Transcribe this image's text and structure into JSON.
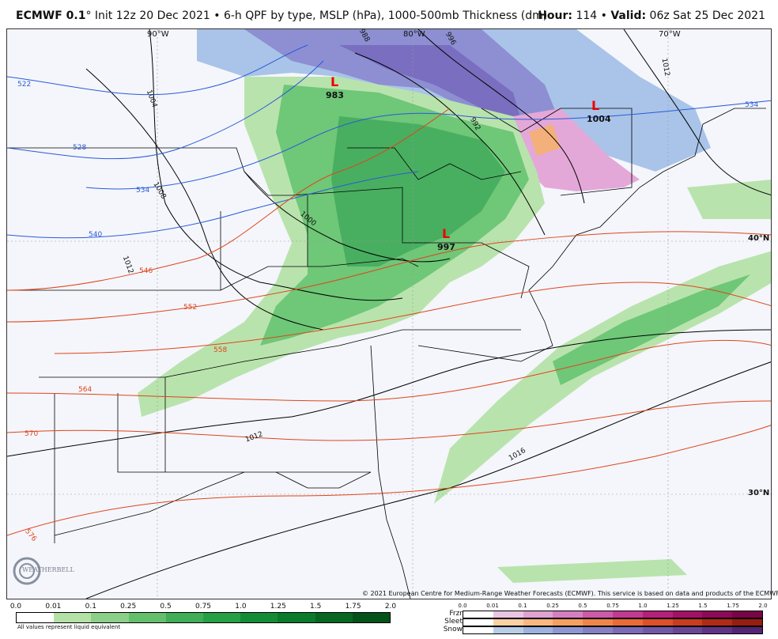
{
  "header": {
    "model": "ECMWF 0.1",
    "degree": "°",
    "subtitle": " Init 12z 20 Dec 2021 • 6-h QPF by type, MSLP (hPa), 1000-500mb Thickness (dm)",
    "hour_label": "Hour:",
    "hour_value": "114",
    "valid_label": "Valid:",
    "valid_value": "06z Sat 25 Dec 2021"
  },
  "map": {
    "longitude_labels": [
      "90°W",
      "80°W",
      "70°W"
    ],
    "latitude_labels": [
      "40°N",
      "30°N"
    ],
    "pressure_centers": [
      {
        "symbol": "L",
        "value": "983"
      },
      {
        "symbol": "L",
        "value": "1004"
      },
      {
        "symbol": "L",
        "value": "997"
      }
    ],
    "isobar_labels": [
      "988",
      "996",
      "1004",
      "992",
      "1008",
      "1000",
      "1012",
      "1012",
      "1016",
      "1012"
    ],
    "thickness_labels": [
      "522",
      "528",
      "534",
      "540",
      "546",
      "552",
      "558",
      "564",
      "570",
      "576",
      "534"
    ],
    "colors": {
      "land_bg": "#f4f6fb",
      "rain_light": "#b9e3ad",
      "rain_mid": "#6fc778",
      "rain_heavy": "#3ea95a",
      "snow_light": "#a9c4e8",
      "snow_mid": "#8d8fd2",
      "snow_heavy": "#7a6ec0",
      "frzr": "#e3a8d8",
      "sleet": "#f4b07a",
      "isobar": "#000000",
      "thickness": "#e0441b",
      "thickness_cold": "#2a5ad8"
    }
  },
  "copyright": "© 2021 European Centre for Medium-Range Weather Forecasts (ECMWF). This service is based on data and products of the ECMWF.",
  "legend_main": {
    "ticks": [
      "0.0",
      "0.01",
      "0.1",
      "0.25",
      "0.5",
      "0.75",
      "1.0",
      "1.25",
      "1.5",
      "1.75",
      "2.0"
    ],
    "colors": [
      "#ffffff",
      "#b4e2a6",
      "#8bd088",
      "#64bf6c",
      "#3fae57",
      "#26a044",
      "#148c36",
      "#0b7a2b",
      "#066622",
      "#03521a",
      "#003d12"
    ],
    "note": "All values represent liquid equivalent"
  },
  "legend_ptype": {
    "ticks": [
      "0.0",
      "0.01",
      "0.1",
      "0.25",
      "0.5",
      "0.75",
      "1.0",
      "1.25",
      "1.5",
      "1.75",
      "2.0"
    ],
    "rows": [
      {
        "label": "Frzr",
        "colors": [
          "#ffffff",
          "#e9c5e2",
          "#dfa3d2",
          "#d57fc0",
          "#cc5aa9",
          "#c23a92",
          "#b5207b",
          "#a11267",
          "#8c0a56",
          "#780546"
        ]
      },
      {
        "label": "Sleet",
        "colors": [
          "#ffffff",
          "#fbd0a5",
          "#f8b880",
          "#f4a062",
          "#f0854b",
          "#eb6a39",
          "#de502b",
          "#c83c20",
          "#b02b17",
          "#961e10"
        ]
      },
      {
        "label": "Snow",
        "colors": [
          "#ffffff",
          "#b9cde8",
          "#9cb2df",
          "#8e97d3",
          "#8780c5",
          "#7c6ab8",
          "#7358aa",
          "#6a4699",
          "#5f3487",
          "#532474"
        ]
      }
    ]
  },
  "logo": {
    "text": "WEATHERBELL",
    "icon": "swirl-logo-icon"
  }
}
